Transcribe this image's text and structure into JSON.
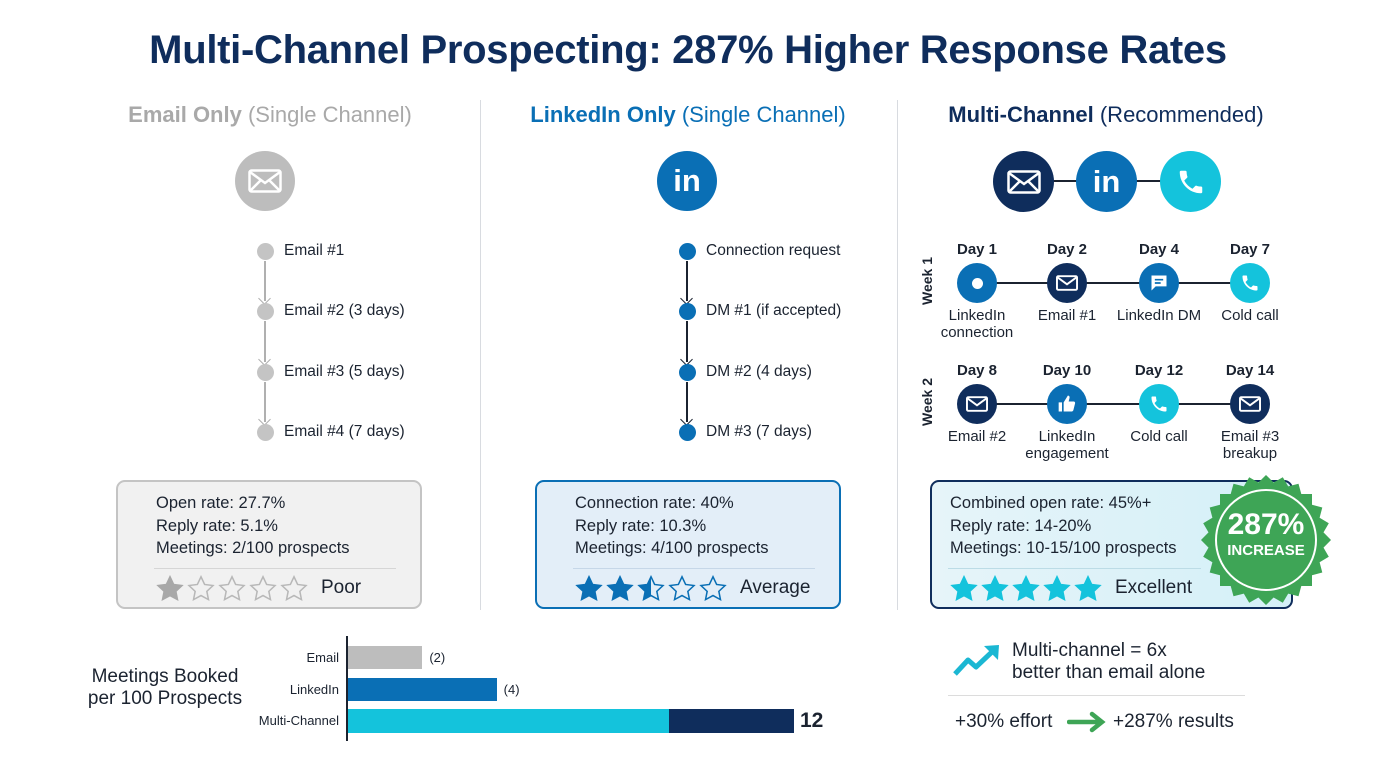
{
  "title": "Multi-Channel Prospecting: 287% Higher Response Rates",
  "colors": {
    "navy": "#0f2d5c",
    "blue": "#0a6fb5",
    "cyan": "#14c3dc",
    "gray": "#bdbdbd",
    "green": "#3ea556"
  },
  "columns": [
    {
      "name": "Email Only",
      "qualifier": "(Single Channel)",
      "icons": [
        "envelope-icon"
      ],
      "steps": [
        "Email #1",
        "Email #2 (3 days)",
        "Email #3 (5 days)",
        "Email #4 (7 days)"
      ],
      "stats": [
        "Open rate: 27.7%",
        "Reply rate: 5.1%",
        "Meetings: 2/100 prospects"
      ],
      "rating": 1,
      "rating_max": 5,
      "rating_label": "Poor"
    },
    {
      "name": "LinkedIn Only",
      "qualifier": "(Single Channel)",
      "icons": [
        "linkedin-icon"
      ],
      "steps": [
        "Connection request",
        "DM #1 (if accepted)",
        "DM #2 (4 days)",
        "DM #3 (7 days)"
      ],
      "stats": [
        "Connection rate: 40%",
        "Reply rate: 10.3%",
        "Meetings: 4/100 prospects"
      ],
      "rating": 2.5,
      "rating_max": 5,
      "rating_label": "Average"
    },
    {
      "name": "Multi-Channel",
      "qualifier": "(Recommended)",
      "icons": [
        "envelope-icon",
        "linkedin-icon",
        "phone-icon"
      ],
      "stats": [
        "Combined open rate: 45%+",
        "Reply rate: 14-20%",
        "Meetings: 10-15/100 prospects"
      ],
      "rating": 5,
      "rating_max": 5,
      "rating_label": "Excellent"
    }
  ],
  "timeline": [
    {
      "week": "Week 1",
      "steps": [
        {
          "day": "Day 1",
          "label": "LinkedIn connection",
          "icon": "dot-icon",
          "color": "blue"
        },
        {
          "day": "Day 2",
          "label": "Email #1",
          "icon": "envelope-icon",
          "color": "navy"
        },
        {
          "day": "Day 4",
          "label": "LinkedIn DM",
          "icon": "chat-icon",
          "color": "blue"
        },
        {
          "day": "Day 7",
          "label": "Cold call",
          "icon": "phone-icon",
          "color": "cyan"
        }
      ]
    },
    {
      "week": "Week 2",
      "steps": [
        {
          "day": "Day 8",
          "label": "Email #2",
          "icon": "envelope-icon",
          "color": "navy"
        },
        {
          "day": "Day 10",
          "label": "LinkedIn engagement",
          "icon": "thumbs-up-icon",
          "color": "blue"
        },
        {
          "day": "Day 12",
          "label": "Cold call",
          "icon": "phone-icon",
          "color": "cyan"
        },
        {
          "day": "Day 14",
          "label": "Email #3 breakup",
          "icon": "envelope-icon",
          "color": "navy"
        }
      ]
    }
  ],
  "badge": {
    "value": "287%",
    "label": "INCREASE"
  },
  "summary": {
    "line1": "Multi-channel = 6x",
    "line2": "better than email alone",
    "effort": "+30% effort",
    "results": "+287% results"
  },
  "chart_data": {
    "type": "bar",
    "orientation": "horizontal",
    "title": "Meetings Booked per 100 Prospects",
    "title_lines": [
      "Meetings Booked",
      "per 100 Prospects"
    ],
    "categories": [
      "Email",
      "LinkedIn",
      "Multi-Channel"
    ],
    "values": [
      2,
      4,
      12
    ],
    "value_labels": [
      "(2)",
      "(4)",
      "12"
    ],
    "bar_colors": [
      "#bdbdbd",
      "#0a6fb5",
      "#14c3dc"
    ]
  }
}
